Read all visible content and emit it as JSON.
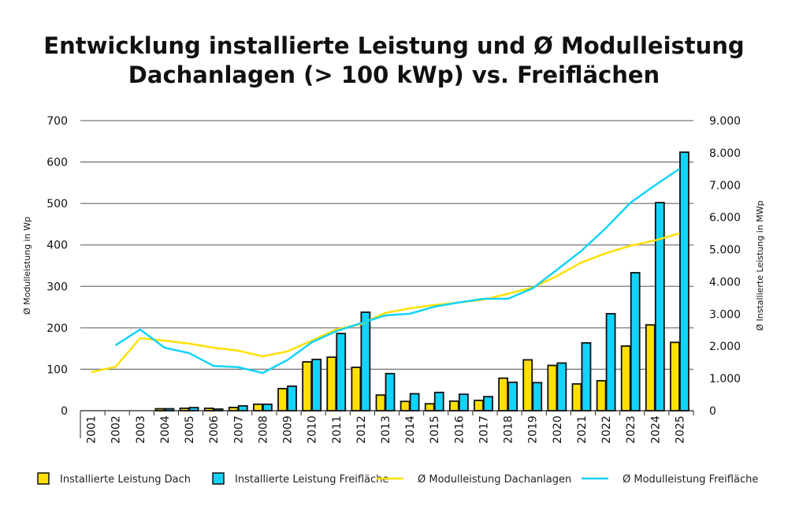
{
  "chart_data": {
    "type": "bar+line",
    "title": "Entwicklung installierte Leistung und Ø Modulleistung Dachanlagen (> 100 kWp) vs. Freiflächen",
    "title_lines": [
      "Entwicklung installierte Leistung und Ø Modulleistung",
      "Dachanlagen (> 100 kWp) vs. Freiflächen"
    ],
    "ylabel_left": "Ø Modulleistung in Wp",
    "ylabel_right": "Ø Installierte Leistung in MWp",
    "ylim_left": [
      0,
      700
    ],
    "ylim_right": [
      0,
      9000
    ],
    "yticks_left": [
      "0",
      "100",
      "200",
      "300",
      "400",
      "500",
      "600",
      "700"
    ],
    "yticks_right": [
      "0",
      "1.000",
      "2.000",
      "3.000",
      "4.000",
      "5.000",
      "6.000",
      "7.000",
      "8.000",
      "9.000"
    ],
    "grid": true,
    "legend_placement": "bottom",
    "categories": [
      "2001",
      "2002",
      "2003",
      "2004",
      "2005",
      "2006",
      "2007",
      "2008",
      "2009",
      "2010",
      "2011",
      "2012",
      "2013",
      "2014",
      "2015",
      "2016",
      "2017",
      "2018",
      "2019",
      "2020",
      "2021",
      "2022",
      "2023",
      "2024",
      "2025"
    ],
    "series": [
      {
        "name": "Installierte Leistung Dach",
        "kind": "bar",
        "axis": "right",
        "color": "#FFE000",
        "values": [
          null,
          null,
          null,
          60,
          75,
          75,
          100,
          200,
          685,
          1515,
          1660,
          1345,
          485,
          288,
          214,
          296,
          320,
          1010,
          1578,
          1405,
          830,
          928,
          2005,
          2662,
          2120
        ]
      },
      {
        "name": "Installierte Leistung Freifläche",
        "kind": "bar",
        "axis": "right",
        "color": "#12D3FA",
        "values": [
          null,
          null,
          null,
          60,
          95,
          50,
          150,
          200,
          760,
          1590,
          2395,
          3055,
          1150,
          526,
          567,
          510,
          435,
          879,
          871,
          1479,
          2104,
          3008,
          4281,
          6456,
          8020
        ]
      },
      {
        "name": "Ø Modulleistung Dachanlagen",
        "kind": "line",
        "axis": "left",
        "color": "#FFE000",
        "values": [
          93,
          106,
          175,
          169,
          162,
          152,
          145,
          131,
          143,
          169,
          196,
          209,
          236,
          247,
          255,
          261,
          268,
          282,
          297,
          325,
          358,
          380,
          398,
          411,
          428
        ]
      },
      {
        "name": "Ø Modulleistung Freifläche",
        "kind": "line",
        "axis": "left",
        "color": "#12D3FA",
        "values": [
          null,
          158,
          196,
          152,
          139,
          108,
          105,
          91,
          122,
          165,
          192,
          211,
          230,
          234,
          251,
          261,
          270,
          270,
          295,
          340,
          386,
          441,
          502,
          544,
          584
        ]
      }
    ]
  }
}
